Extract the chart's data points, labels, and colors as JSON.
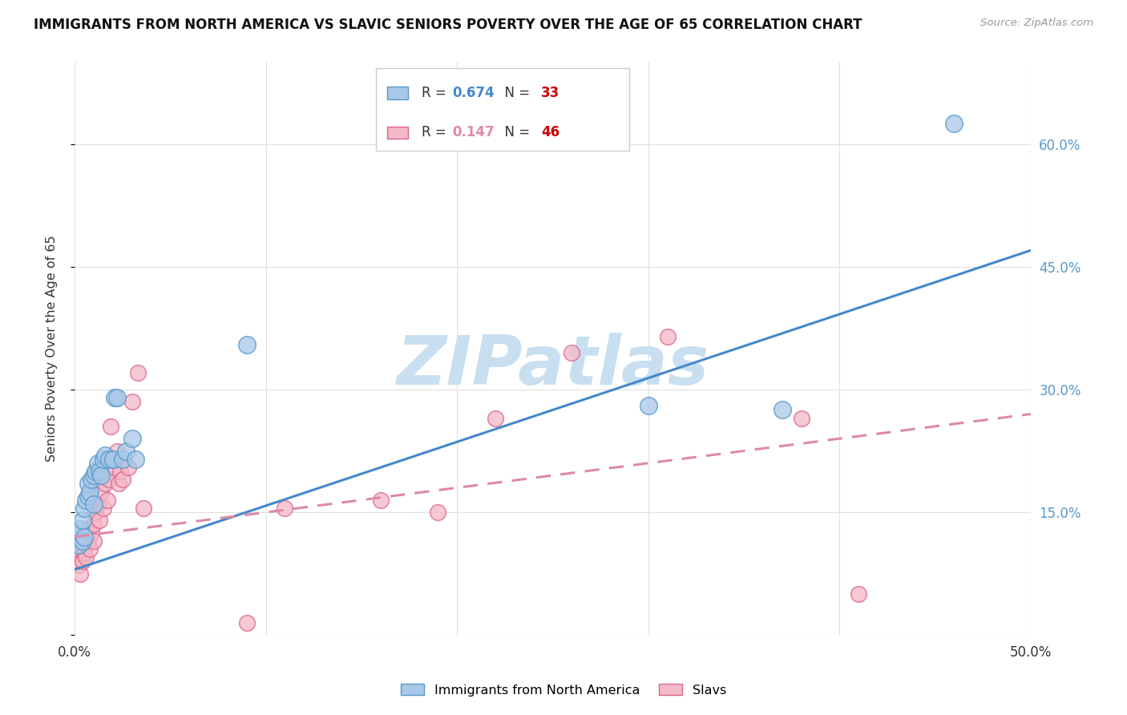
{
  "title": "IMMIGRANTS FROM NORTH AMERICA VS SLAVIC SENIORS POVERTY OVER THE AGE OF 65 CORRELATION CHART",
  "source": "Source: ZipAtlas.com",
  "ylabel": "Seniors Poverty Over the Age of 65",
  "r_blue": 0.674,
  "n_blue": 33,
  "r_pink": 0.147,
  "n_pink": 46,
  "blue_color": "#a8c8e8",
  "pink_color": "#f4b8c8",
  "blue_edge_color": "#5599cc",
  "pink_edge_color": "#dd6688",
  "blue_line_color": "#4488cc",
  "pink_line_color": "#dd88aa",
  "watermark_text": "ZIPatlas",
  "watermark_color": "#c8dff0",
  "blue_scatter_x": [
    0.001,
    0.002,
    0.002,
    0.003,
    0.004,
    0.004,
    0.005,
    0.005,
    0.006,
    0.007,
    0.007,
    0.008,
    0.009,
    0.01,
    0.01,
    0.011,
    0.012,
    0.013,
    0.014,
    0.015,
    0.016,
    0.018,
    0.02,
    0.021,
    0.022,
    0.025,
    0.027,
    0.03,
    0.032,
    0.09,
    0.3,
    0.37,
    0.46
  ],
  "blue_scatter_y": [
    0.115,
    0.125,
    0.11,
    0.13,
    0.115,
    0.14,
    0.155,
    0.12,
    0.165,
    0.17,
    0.185,
    0.175,
    0.19,
    0.16,
    0.195,
    0.2,
    0.21,
    0.2,
    0.195,
    0.215,
    0.22,
    0.215,
    0.215,
    0.29,
    0.29,
    0.215,
    0.225,
    0.24,
    0.215,
    0.355,
    0.28,
    0.275,
    0.625
  ],
  "pink_scatter_x": [
    0.001,
    0.001,
    0.002,
    0.002,
    0.003,
    0.003,
    0.004,
    0.004,
    0.005,
    0.005,
    0.006,
    0.006,
    0.007,
    0.007,
    0.008,
    0.009,
    0.01,
    0.01,
    0.011,
    0.012,
    0.013,
    0.014,
    0.015,
    0.016,
    0.017,
    0.018,
    0.019,
    0.02,
    0.021,
    0.022,
    0.023,
    0.024,
    0.025,
    0.028,
    0.03,
    0.033,
    0.036,
    0.09,
    0.11,
    0.16,
    0.19,
    0.22,
    0.26,
    0.31,
    0.38,
    0.41
  ],
  "pink_scatter_y": [
    0.115,
    0.1,
    0.105,
    0.085,
    0.075,
    0.11,
    0.09,
    0.105,
    0.125,
    0.1,
    0.095,
    0.12,
    0.115,
    0.13,
    0.105,
    0.125,
    0.135,
    0.115,
    0.15,
    0.16,
    0.14,
    0.175,
    0.155,
    0.185,
    0.165,
    0.19,
    0.255,
    0.205,
    0.215,
    0.225,
    0.185,
    0.2,
    0.19,
    0.205,
    0.285,
    0.32,
    0.155,
    0.015,
    0.155,
    0.165,
    0.15,
    0.265,
    0.345,
    0.365,
    0.265,
    0.05
  ],
  "xmin": 0.0,
  "xmax": 0.5,
  "ymin": 0.0,
  "ymax": 0.7,
  "blue_line_x0": 0.0,
  "blue_line_y0": 0.08,
  "blue_line_x1": 0.5,
  "blue_line_y1": 0.47,
  "pink_line_x0": 0.0,
  "pink_line_y0": 0.12,
  "pink_line_x1": 0.5,
  "pink_line_y1": 0.27,
  "yticks": [
    0.0,
    0.15,
    0.3,
    0.45,
    0.6
  ],
  "ytick_labels_right": [
    "",
    "15.0%",
    "30.0%",
    "45.0%",
    "60.0%"
  ],
  "xticks": [
    0.0,
    0.1,
    0.2,
    0.3,
    0.4,
    0.5
  ],
  "xtick_labels": [
    "0.0%",
    "",
    "",
    "",
    "",
    "50.0%"
  ],
  "grid_color": "#e0e0e0",
  "background_color": "#ffffff",
  "legend_label_blue": "Immigrants from North America",
  "legend_label_pink": "Slavs"
}
